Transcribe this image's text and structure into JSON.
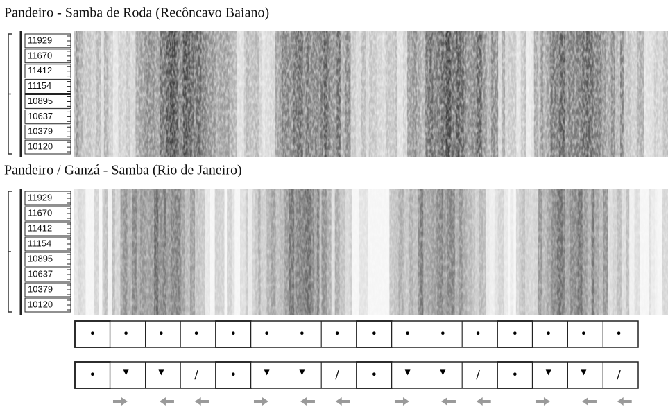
{
  "panels": [
    {
      "title": "Pandeiro - Samba de Roda (Recôncavo Baiano)",
      "freq_labels": [
        "11929",
        "11670",
        "11412",
        "11154",
        "10895",
        "10637",
        "10379",
        "10120"
      ]
    },
    {
      "title": "Pandeiro / Ganzá - Samba (Rio de Janeiro)",
      "freq_labels": [
        "11929",
        "11670",
        "11412",
        "11154",
        "10895",
        "10637",
        "10379",
        "10120"
      ]
    }
  ],
  "notation": {
    "row1": [
      "•",
      "•",
      "•",
      "•",
      "•",
      "•",
      "•",
      "•",
      "•",
      "•",
      "•",
      "•",
      "•",
      "•",
      "•",
      "•"
    ],
    "row2": [
      "•",
      "▾",
      "▾",
      "/",
      "•",
      "▾",
      "▾",
      "/",
      "•",
      "▾",
      "▾",
      "/",
      "•",
      "▾",
      "▾",
      "/"
    ]
  }
}
